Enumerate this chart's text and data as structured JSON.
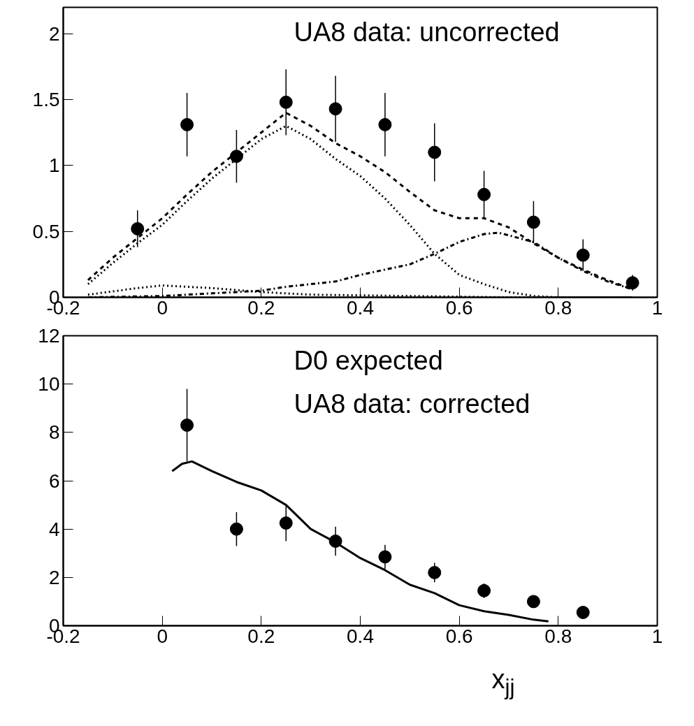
{
  "chart_data": [
    {
      "type": "scatter",
      "xlim": [
        -0.2,
        1
      ],
      "xticks": [
        -0.2,
        0,
        0.2,
        0.4,
        0.6,
        0.8,
        1
      ],
      "ylim": [
        0,
        2.2
      ],
      "yticks": [
        0,
        0.5,
        1,
        1.5,
        2
      ],
      "grid": false,
      "annotations": [
        "UA8 data: uncorrected"
      ],
      "series": [
        {
          "type": "line",
          "color": "#000000",
          "line_style": "dashed",
          "x": [
            -0.15,
            -0.1,
            -0.05,
            0,
            0.05,
            0.1,
            0.15,
            0.2,
            0.25,
            0.3,
            0.35,
            0.4,
            0.45,
            0.5,
            0.55,
            0.6,
            0.65,
            0.7,
            0.75,
            0.8,
            0.85,
            0.9,
            0.95
          ],
          "values": [
            0.13,
            0.3,
            0.45,
            0.6,
            0.78,
            0.95,
            1.1,
            1.25,
            1.4,
            1.3,
            1.17,
            1.07,
            0.95,
            0.8,
            0.66,
            0.6,
            0.6,
            0.53,
            0.41,
            0.3,
            0.21,
            0.13,
            0.06
          ]
        },
        {
          "type": "line",
          "color": "#000000",
          "line_style": "dotted",
          "x": [
            -0.15,
            -0.1,
            -0.05,
            0,
            0.05,
            0.1,
            0.15,
            0.2,
            0.25,
            0.3,
            0.35,
            0.4,
            0.45,
            0.5,
            0.55,
            0.6,
            0.65,
            0.7,
            0.75,
            0.8,
            0.95
          ],
          "values": [
            0.1,
            0.26,
            0.41,
            0.55,
            0.73,
            0.9,
            1.05,
            1.2,
            1.3,
            1.2,
            1.05,
            0.92,
            0.75,
            0.55,
            0.33,
            0.17,
            0.1,
            0.04,
            0.01,
            0,
            0
          ]
        },
        {
          "type": "line",
          "color": "#000000",
          "line_style": "dotted",
          "x": [
            -0.15,
            -0.05,
            0,
            0.05,
            0.1,
            0.2,
            0.3,
            0.5,
            0.7,
            0.95
          ],
          "values": [
            0.02,
            0.07,
            0.09,
            0.08,
            0.07,
            0.04,
            0.02,
            0.01,
            0,
            0
          ]
        },
        {
          "type": "line",
          "color": "#000000",
          "line_style": "dashdot",
          "x": [
            -0.15,
            0,
            0.1,
            0.2,
            0.25,
            0.35,
            0.4,
            0.5,
            0.55,
            0.6,
            0.65,
            0.68,
            0.75,
            0.8,
            0.85,
            0.9,
            0.95
          ],
          "values": [
            0,
            0.01,
            0.03,
            0.05,
            0.08,
            0.12,
            0.17,
            0.25,
            0.33,
            0.42,
            0.48,
            0.49,
            0.42,
            0.3,
            0.2,
            0.12,
            0.06
          ]
        },
        {
          "marker": "circle",
          "color": "#000000",
          "x": [
            -0.05,
            0.05,
            0.15,
            0.25,
            0.35,
            0.45,
            0.55,
            0.65,
            0.75,
            0.85,
            0.95
          ],
          "values": [
            0.52,
            1.31,
            1.07,
            1.48,
            1.43,
            1.31,
            1.1,
            0.78,
            0.57,
            0.32,
            0.11
          ],
          "errors": [
            0.14,
            0.24,
            0.2,
            0.25,
            0.25,
            0.24,
            0.22,
            0.18,
            0.16,
            0.12,
            0.06
          ]
        }
      ]
    },
    {
      "type": "scatter",
      "xlim": [
        -0.2,
        1
      ],
      "xticks": [
        -0.2,
        0,
        0.2,
        0.4,
        0.6,
        0.8,
        1
      ],
      "ylim": [
        0,
        12
      ],
      "yticks": [
        0,
        2,
        4,
        6,
        8,
        10,
        12
      ],
      "xlabel": "x$_{jj}$",
      "grid": false,
      "annotations": [
        "D0  expected",
        "UA8 data: corrected"
      ],
      "series": [
        {
          "type": "line",
          "color": "#000000",
          "line_style": "solid",
          "x": [
            0.02,
            0.04,
            0.06,
            0.1,
            0.15,
            0.2,
            0.25,
            0.3,
            0.35,
            0.4,
            0.45,
            0.5,
            0.55,
            0.6,
            0.65,
            0.7,
            0.75,
            0.78
          ],
          "values": [
            6.4,
            6.7,
            6.8,
            6.4,
            5.95,
            5.6,
            5.0,
            4.0,
            3.45,
            2.8,
            2.3,
            1.7,
            1.35,
            0.85,
            0.6,
            0.45,
            0.25,
            0.18
          ]
        },
        {
          "marker": "circle",
          "color": "#000000",
          "x": [
            0.05,
            0.15,
            0.25,
            0.35,
            0.45,
            0.55,
            0.65,
            0.75,
            0.85
          ],
          "values": [
            8.3,
            4.0,
            4.25,
            3.5,
            2.85,
            2.2,
            1.45,
            1.0,
            0.55
          ],
          "errors": [
            1.5,
            0.7,
            0.75,
            0.6,
            0.5,
            0.4,
            0.3,
            null,
            null
          ]
        }
      ]
    }
  ]
}
